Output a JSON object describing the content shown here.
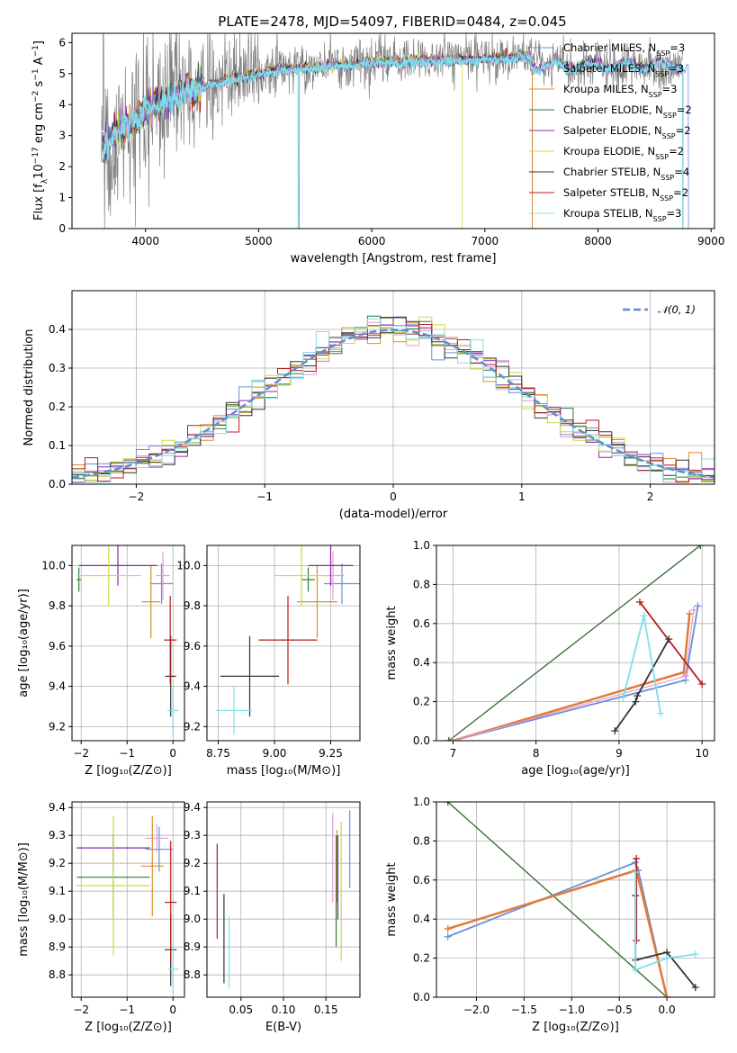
{
  "title": "PLATE=2478, MJD=54097, FIBERID=0484, z=0.045",
  "colors": {
    "Chabrier MILES": "#6a8fd8",
    "Salpeter MILES": "#e59bd6",
    "Kroupa MILES": "#d9902a",
    "Chabrier ELODIE": "#2e7d32",
    "Salpeter ELODIE": "#8e24aa",
    "Kroupa ELODIE": "#cddc39",
    "Chabrier STELIB": "#333333",
    "Salpeter STELIB": "#b71c1c",
    "Kroupa STELIB": "#80deea",
    "data": "#808080",
    "normal": "#5b8fd0",
    "thick_orange": "#e07b39"
  },
  "chart_data": [
    {
      "type": "line",
      "panel": "spectrum",
      "xlabel": "wavelength [Angstrom, rest frame]",
      "ylabel": "Flux [f_λ 10^-17 erg cm^-2 s^-1 A^-1]",
      "xlim": [
        3350,
        9030
      ],
      "ylim": [
        0,
        6.3
      ],
      "xticks": [
        4000,
        5000,
        6000,
        7000,
        8000,
        9000
      ],
      "yticks": [
        0,
        1,
        2,
        3,
        4,
        5,
        6
      ],
      "legend_position": "right",
      "legend": [
        {
          "name": "Chabrier MILES",
          "sub": "SSP",
          "n": "=3",
          "key": "Chabrier MILES"
        },
        {
          "name": "Salpeter MILES",
          "sub": "SSP",
          "n": "=3",
          "key": "Salpeter MILES"
        },
        {
          "name": "Kroupa MILES",
          "sub": "SSP",
          "n": "=3",
          "key": "Kroupa MILES"
        },
        {
          "name": "Chabrier ELODIE",
          "sub": "SSP",
          "n": "=2",
          "key": "Chabrier ELODIE"
        },
        {
          "name": "Salpeter ELODIE",
          "sub": "SSP",
          "n": "=2",
          "key": "Salpeter ELODIE"
        },
        {
          "name": "Kroupa ELODIE",
          "sub": "SSP",
          "n": "=2",
          "key": "Kroupa ELODIE"
        },
        {
          "name": "Chabrier STELIB",
          "sub": "SSP",
          "n": "=4",
          "key": "Chabrier STELIB"
        },
        {
          "name": "Salpeter STELIB",
          "sub": "SSP",
          "n": "=2",
          "key": "Salpeter STELIB"
        },
        {
          "name": "Kroupa STELIB",
          "sub": "SSP",
          "n": "=3",
          "key": "Kroupa STELIB"
        }
      ],
      "model_continuum": {
        "x": [
          3620,
          3700,
          3800,
          3900,
          4000,
          4200,
          4400,
          4600,
          4800,
          5000,
          5200,
          5400,
          5600,
          5800,
          6000,
          6200,
          6400,
          6600,
          6800,
          7000,
          7200,
          7400
        ],
        "y": [
          2.6,
          3.0,
          3.3,
          3.5,
          3.9,
          4.2,
          4.5,
          4.7,
          4.9,
          5.0,
          5.2,
          5.2,
          5.3,
          5.3,
          5.4,
          5.4,
          5.45,
          5.45,
          5.5,
          5.5,
          5.55,
          5.6
        ]
      },
      "model_ends": {
        "Kroupa ELODIE": 6800,
        "Salpeter STELIB": 7420,
        "Kroupa MILES": 7420,
        "Chabrier MILES": 8800
      },
      "data_range": [
        3610,
        8750
      ]
    },
    {
      "type": "histogram",
      "panel": "residuals",
      "xlabel": "(data-model)/error",
      "ylabel": "Normed distribution",
      "xlim": [
        -2.5,
        2.5
      ],
      "ylim": [
        0,
        0.5
      ],
      "xticks": [
        -2,
        -1,
        0,
        1,
        2
      ],
      "yticks": [
        0.0,
        0.1,
        0.2,
        0.3,
        0.4
      ],
      "legend": "𝒩(0, 1)",
      "legend_position": "top-right",
      "bin_width": 0.1,
      "bins_start": -2.5
    },
    {
      "type": "scatter",
      "panel": "age_vs_Z",
      "xlabel": "Z [log₁₀(Z/Z⊙)]",
      "ylabel": "age  [log₁₀(age/yr)]",
      "xlim": [
        -2.2,
        0.25
      ],
      "ylim": [
        9.13,
        10.1
      ],
      "xticks": [
        -2,
        -1,
        0
      ],
      "yticks": [
        9.2,
        9.4,
        9.6,
        9.8,
        10.0
      ],
      "points": [
        {
          "key": "Chabrier MILES",
          "x": -0.25,
          "y": 9.91,
          "xerr": 0.25,
          "yerr": 0.1
        },
        {
          "key": "Salpeter MILES",
          "x": -0.22,
          "y": 9.95,
          "xerr": 0.15,
          "yerr": 0.12
        },
        {
          "key": "Kroupa MILES",
          "x": -0.48,
          "y": 9.82,
          "xerr": 0.2,
          "yerr": 0.18
        },
        {
          "key": "Chabrier ELODIE",
          "x": -2.05,
          "y": 9.93,
          "xerr": 0.05,
          "yerr": 0.06
        },
        {
          "key": "Salpeter ELODIE",
          "x": -1.2,
          "y": 10.0,
          "xerr": 0.85,
          "yerr": 0.1
        },
        {
          "key": "Kroupa ELODIE",
          "x": -1.4,
          "y": 9.95,
          "xerr": 0.7,
          "yerr": 0.15
        },
        {
          "key": "Chabrier STELIB",
          "x": -0.05,
          "y": 9.45,
          "xerr": 0.12,
          "yerr": 0.2
        },
        {
          "key": "Salpeter STELIB",
          "x": -0.06,
          "y": 9.63,
          "xerr": 0.14,
          "yerr": 0.22
        },
        {
          "key": "Kroupa STELIB",
          "x": 0.0,
          "y": 9.28,
          "xerr": 0.12,
          "yerr": 0.12
        }
      ]
    },
    {
      "type": "scatter",
      "panel": "age_vs_mass",
      "xlabel": "mass [log₁₀(M/M⊙)]",
      "ylabel": "",
      "xlim": [
        8.7,
        9.38
      ],
      "ylim": [
        9.13,
        10.1
      ],
      "xticks": [
        8.75,
        9.0,
        9.25
      ],
      "yticks": [
        9.2,
        9.4,
        9.6,
        9.8,
        10.0
      ],
      "points": [
        {
          "key": "Chabrier MILES",
          "x": 9.3,
          "y": 9.91,
          "xerr": 0.08,
          "yerr": 0.1
        },
        {
          "key": "Salpeter MILES",
          "x": 9.26,
          "y": 9.95,
          "xerr": 0.05,
          "yerr": 0.12
        },
        {
          "key": "Kroupa MILES",
          "x": 9.19,
          "y": 9.82,
          "xerr": 0.09,
          "yerr": 0.18
        },
        {
          "key": "Chabrier ELODIE",
          "x": 9.15,
          "y": 9.93,
          "xerr": 0.03,
          "yerr": 0.06
        },
        {
          "key": "Salpeter ELODIE",
          "x": 9.25,
          "y": 10.0,
          "xerr": 0.1,
          "yerr": 0.1
        },
        {
          "key": "Kroupa ELODIE",
          "x": 9.12,
          "y": 9.95,
          "xerr": 0.12,
          "yerr": 0.15
        },
        {
          "key": "Chabrier STELIB",
          "x": 8.89,
          "y": 9.45,
          "xerr": 0.13,
          "yerr": 0.2
        },
        {
          "key": "Salpeter STELIB",
          "x": 9.06,
          "y": 9.63,
          "xerr": 0.13,
          "yerr": 0.22
        },
        {
          "key": "Kroupa STELIB",
          "x": 8.82,
          "y": 9.28,
          "xerr": 0.08,
          "yerr": 0.12
        }
      ]
    },
    {
      "type": "line",
      "panel": "massweight_vs_age",
      "xlabel": "age  [log₁₀(age/yr)]",
      "ylabel": "mass weight",
      "xlim": [
        6.8,
        10.15
      ],
      "ylim": [
        0,
        1.0
      ],
      "xticks": [
        7,
        8,
        9,
        10
      ],
      "yticks": [
        0.0,
        0.2,
        0.4,
        0.6,
        0.8,
        1.0
      ],
      "series": [
        {
          "key": "Kroupa ELODIE",
          "x": [
            6.95,
            9.98
          ],
          "y": [
            0.0,
            1.0
          ]
        },
        {
          "key": "Salpeter ELODIE",
          "x": [
            6.95,
            9.98
          ],
          "y": [
            0.0,
            1.0
          ]
        },
        {
          "key": "Chabrier ELODIE",
          "x": [
            6.95,
            9.98
          ],
          "y": [
            0.0,
            1.0
          ]
        },
        {
          "key": "Chabrier MILES",
          "x": [
            7.0,
            9.8,
            9.95
          ],
          "y": [
            0.0,
            0.31,
            0.69
          ]
        },
        {
          "key": "thick_orange",
          "x": [
            7.0,
            9.78,
            9.85
          ],
          "y": [
            0.0,
            0.35,
            0.65
          ]
        },
        {
          "key": "Salpeter MILES",
          "x": [
            7.0,
            9.8,
            9.9
          ],
          "y": [
            0.0,
            0.33,
            0.67
          ]
        },
        {
          "key": "Salpeter STELIB",
          "x": [
            9.25,
            10.0
          ],
          "y": [
            0.71,
            0.29
          ]
        },
        {
          "key": "Chabrier STELIB",
          "x": [
            8.95,
            9.2,
            9.22,
            9.6
          ],
          "y": [
            0.05,
            0.2,
            0.23,
            0.52
          ]
        },
        {
          "key": "Kroupa STELIB",
          "x": [
            9.05,
            9.3,
            9.5
          ],
          "y": [
            0.22,
            0.64,
            0.14
          ]
        }
      ]
    },
    {
      "type": "scatter",
      "panel": "mass_vs_Z",
      "xlabel": "Z [log₁₀(Z/Z⊙)]",
      "ylabel": "mass [log₁₀(M/M⊙)]",
      "xlim": [
        -2.2,
        0.25
      ],
      "ylim": [
        8.72,
        9.42
      ],
      "xticks": [
        -2,
        -1,
        0
      ],
      "yticks": [
        8.8,
        8.9,
        9.0,
        9.1,
        9.2,
        9.3,
        9.4
      ],
      "points": [
        {
          "key": "Chabrier MILES",
          "x": -0.3,
          "y": 9.25,
          "xerr": 0.3,
          "yerr": 0.08
        },
        {
          "key": "Salpeter MILES",
          "x": -0.35,
          "y": 9.29,
          "xerr": 0.25,
          "yerr": 0.05
        },
        {
          "key": "Kroupa MILES",
          "x": -0.45,
          "y": 9.19,
          "xerr": 0.25,
          "yerr": 0.18
        },
        {
          "key": "Chabrier ELODIE",
          "x": -1.3,
          "y": 9.15,
          "xerr": 0.8,
          "yerr": 0.15
        },
        {
          "key": "Salpeter ELODIE",
          "x": -1.3,
          "y": 9.255,
          "xerr": 0.8,
          "yerr": 0.05
        },
        {
          "key": "Kroupa ELODIE",
          "x": -1.3,
          "y": 9.12,
          "xerr": 0.8,
          "yerr": 0.25
        },
        {
          "key": "Chabrier STELIB",
          "x": -0.05,
          "y": 8.89,
          "xerr": 0.13,
          "yerr": 0.13
        },
        {
          "key": "Salpeter STELIB",
          "x": -0.05,
          "y": 9.06,
          "xerr": 0.13,
          "yerr": 0.22
        },
        {
          "key": "Kroupa STELIB",
          "x": 0.0,
          "y": 8.82,
          "xerr": 0.12,
          "yerr": 0.09
        }
      ]
    },
    {
      "type": "scatter",
      "panel": "mass_vs_EBV",
      "xlabel": "E(B-V)",
      "ylabel": "",
      "xlim": [
        0.01,
        0.19
      ],
      "ylim": [
        8.72,
        9.42
      ],
      "xticks": [
        0.05,
        0.1,
        0.15
      ],
      "yticks": [
        8.8,
        8.9,
        9.0,
        9.1,
        9.2,
        9.3,
        9.4
      ],
      "points": [
        {
          "key": "Chabrier MILES",
          "x": 0.178,
          "y": 9.25,
          "yerr": 0.14
        },
        {
          "key": "Salpeter MILES",
          "x": 0.158,
          "y": 9.22,
          "yerr": 0.16
        },
        {
          "key": "Kroupa MILES",
          "x": 0.163,
          "y": 9.19,
          "yerr": 0.13
        },
        {
          "key": "Chabrier ELODIE",
          "x": 0.162,
          "y": 9.1,
          "yerr": 0.2
        },
        {
          "key": "Salpeter ELODIE",
          "x": 0.164,
          "y": 9.15,
          "yerr": 0.15
        },
        {
          "key": "Kroupa ELODIE",
          "x": 0.168,
          "y": 9.1,
          "yerr": 0.25
        },
        {
          "key": "Chabrier STELIB",
          "x": 0.03,
          "y": 8.93,
          "yerr": 0.16
        },
        {
          "key": "Salpeter STELIB",
          "x": 0.022,
          "y": 9.1,
          "yerr": 0.17
        },
        {
          "key": "Kroupa STELIB",
          "x": 0.036,
          "y": 8.88,
          "yerr": 0.13
        }
      ]
    },
    {
      "type": "line",
      "panel": "massweight_vs_Z",
      "xlabel": "Z [log₁₀(Z/Z⊙)]",
      "ylabel": "mass weight",
      "xlim": [
        -2.42,
        0.5
      ],
      "ylim": [
        0,
        1.0
      ],
      "xticks": [
        -2.0,
        -1.5,
        -1.0,
        -0.5,
        0.0
      ],
      "yticks": [
        0.0,
        0.2,
        0.4,
        0.6,
        0.8,
        1.0
      ],
      "series": [
        {
          "key": "Kroupa ELODIE",
          "x": [
            -2.3,
            0.0
          ],
          "y": [
            1.0,
            0.0
          ]
        },
        {
          "key": "Salpeter ELODIE",
          "x": [
            -2.3,
            0.0
          ],
          "y": [
            1.0,
            0.0
          ]
        },
        {
          "key": "Chabrier ELODIE",
          "x": [
            -2.3,
            0.0
          ],
          "y": [
            1.0,
            0.0
          ]
        },
        {
          "key": "Chabrier MILES",
          "x": [
            -2.3,
            -0.33,
            -0.3,
            0.0
          ],
          "y": [
            0.31,
            0.69,
            0.65,
            0.0
          ]
        },
        {
          "key": "thick_orange",
          "x": [
            -2.3,
            -0.32,
            0.0
          ],
          "y": [
            0.35,
            0.65,
            0.0
          ]
        },
        {
          "key": "Salpeter STELIB",
          "x": [
            -0.32,
            -0.32
          ],
          "y": [
            0.71,
            0.29
          ]
        },
        {
          "key": "Chabrier STELIB",
          "x": [
            -0.33,
            -0.33,
            0.0,
            0.3
          ],
          "y": [
            0.52,
            0.19,
            0.23,
            0.05
          ]
        },
        {
          "key": "Kroupa STELIB",
          "x": [
            -0.33,
            -0.33,
            0.0,
            0.3
          ],
          "y": [
            0.64,
            0.14,
            0.2,
            0.22
          ]
        }
      ]
    }
  ]
}
